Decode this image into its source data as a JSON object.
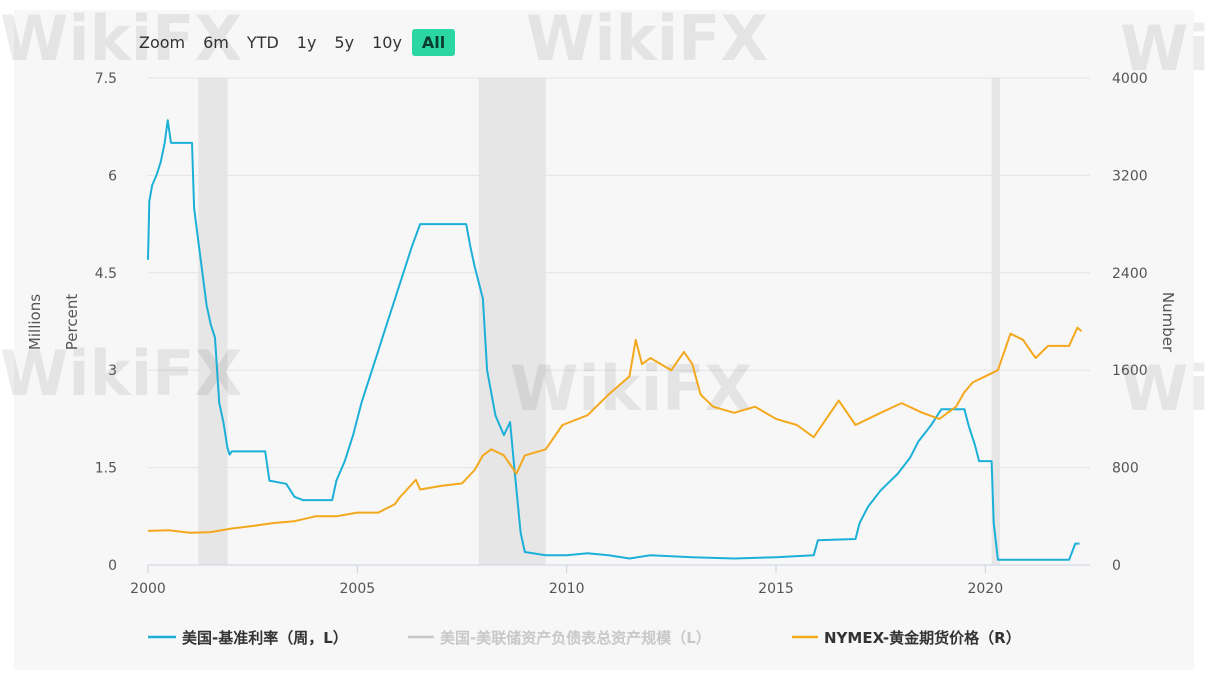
{
  "zoom": {
    "label": "Zoom",
    "buttons": [
      "6m",
      "YTD",
      "1y",
      "5y",
      "10y",
      "All"
    ],
    "active": "All"
  },
  "watermark": "WikiFX",
  "chart_data": {
    "type": "line",
    "x_range": [
      2000,
      2022.5
    ],
    "x_ticks": [
      "2000",
      "2005",
      "2010",
      "2015",
      "2020"
    ],
    "y_left": {
      "labels": [
        "Millions",
        "Percent"
      ],
      "range": [
        0,
        7.5
      ],
      "ticks": [
        "0",
        "1.5",
        "3",
        "4.5",
        "6",
        "7.5"
      ]
    },
    "y_right": {
      "label": "Number",
      "range": [
        0,
        4000
      ],
      "ticks": [
        "0",
        "800",
        "1600",
        "2400",
        "3200",
        "4000"
      ]
    },
    "grid": true,
    "legend_position": "bottom",
    "shaded_periods": [
      [
        2001.2,
        2001.9
      ],
      [
        2007.9,
        2009.5
      ],
      [
        2020.15,
        2020.35
      ]
    ],
    "series": [
      {
        "name": "美国-基准利率（周，L）",
        "axis": "left",
        "color": "#1cb0d8",
        "points": [
          [
            2000.0,
            4.7
          ],
          [
            2000.03,
            5.6
          ],
          [
            2000.1,
            5.85
          ],
          [
            2000.2,
            6.0
          ],
          [
            2000.3,
            6.2
          ],
          [
            2000.4,
            6.5
          ],
          [
            2000.47,
            6.85
          ],
          [
            2000.55,
            6.5
          ],
          [
            2000.9,
            6.5
          ],
          [
            2001.05,
            6.5
          ],
          [
            2001.1,
            5.5
          ],
          [
            2001.2,
            5.0
          ],
          [
            2001.3,
            4.5
          ],
          [
            2001.4,
            4.0
          ],
          [
            2001.5,
            3.7
          ],
          [
            2001.6,
            3.5
          ],
          [
            2001.7,
            2.5
          ],
          [
            2001.8,
            2.2
          ],
          [
            2001.9,
            1.8
          ],
          [
            2001.95,
            1.7
          ],
          [
            2002.0,
            1.75
          ],
          [
            2002.5,
            1.75
          ],
          [
            2002.8,
            1.75
          ],
          [
            2002.9,
            1.3
          ],
          [
            2003.3,
            1.25
          ],
          [
            2003.5,
            1.05
          ],
          [
            2003.7,
            1.0
          ],
          [
            2004.4,
            1.0
          ],
          [
            2004.5,
            1.3
          ],
          [
            2004.7,
            1.6
          ],
          [
            2004.9,
            2.0
          ],
          [
            2005.1,
            2.5
          ],
          [
            2005.3,
            2.9
          ],
          [
            2005.5,
            3.3
          ],
          [
            2005.7,
            3.7
          ],
          [
            2005.9,
            4.1
          ],
          [
            2006.1,
            4.5
          ],
          [
            2006.3,
            4.9
          ],
          [
            2006.5,
            5.25
          ],
          [
            2007.6,
            5.25
          ],
          [
            2007.7,
            4.9
          ],
          [
            2007.8,
            4.6
          ],
          [
            2008.0,
            4.1
          ],
          [
            2008.1,
            3.0
          ],
          [
            2008.3,
            2.3
          ],
          [
            2008.5,
            2.0
          ],
          [
            2008.65,
            2.2
          ],
          [
            2008.75,
            1.5
          ],
          [
            2008.9,
            0.5
          ],
          [
            2009.0,
            0.2
          ],
          [
            2009.5,
            0.15
          ],
          [
            2010.0,
            0.15
          ],
          [
            2010.5,
            0.18
          ],
          [
            2011.0,
            0.15
          ],
          [
            2011.5,
            0.1
          ],
          [
            2012.0,
            0.15
          ],
          [
            2013.0,
            0.12
          ],
          [
            2014.0,
            0.1
          ],
          [
            2015.0,
            0.12
          ],
          [
            2015.9,
            0.15
          ],
          [
            2016.0,
            0.38
          ],
          [
            2016.9,
            0.4
          ],
          [
            2017.0,
            0.65
          ],
          [
            2017.2,
            0.9
          ],
          [
            2017.5,
            1.15
          ],
          [
            2017.9,
            1.4
          ],
          [
            2018.2,
            1.65
          ],
          [
            2018.4,
            1.9
          ],
          [
            2018.7,
            2.15
          ],
          [
            2018.95,
            2.4
          ],
          [
            2019.5,
            2.4
          ],
          [
            2019.6,
            2.15
          ],
          [
            2019.75,
            1.85
          ],
          [
            2019.85,
            1.6
          ],
          [
            2020.15,
            1.6
          ],
          [
            2020.2,
            0.65
          ],
          [
            2020.3,
            0.08
          ],
          [
            2021.0,
            0.08
          ],
          [
            2022.0,
            0.08
          ],
          [
            2022.15,
            0.33
          ],
          [
            2022.25,
            0.33
          ]
        ]
      },
      {
        "name": "美国-美联储资产负债表总资产规模（L）",
        "axis": "left",
        "color": "#c8c8c8",
        "points": []
      },
      {
        "name": "NYMEX-黄金期货价格（R）",
        "axis": "right",
        "color": "#f4a81d",
        "points": [
          [
            2000.0,
            280
          ],
          [
            2000.5,
            285
          ],
          [
            2001.0,
            265
          ],
          [
            2001.5,
            270
          ],
          [
            2002.0,
            300
          ],
          [
            2002.5,
            320
          ],
          [
            2003.0,
            345
          ],
          [
            2003.5,
            360
          ],
          [
            2004.0,
            400
          ],
          [
            2004.5,
            400
          ],
          [
            2005.0,
            430
          ],
          [
            2005.5,
            430
          ],
          [
            2005.9,
            500
          ],
          [
            2006.0,
            550
          ],
          [
            2006.4,
            700
          ],
          [
            2006.5,
            620
          ],
          [
            2007.0,
            650
          ],
          [
            2007.5,
            670
          ],
          [
            2007.8,
            780
          ],
          [
            2008.0,
            900
          ],
          [
            2008.2,
            950
          ],
          [
            2008.5,
            900
          ],
          [
            2008.8,
            750
          ],
          [
            2009.0,
            900
          ],
          [
            2009.5,
            950
          ],
          [
            2009.9,
            1150
          ],
          [
            2010.5,
            1230
          ],
          [
            2011.0,
            1400
          ],
          [
            2011.5,
            1550
          ],
          [
            2011.65,
            1850
          ],
          [
            2011.8,
            1650
          ],
          [
            2012.0,
            1700
          ],
          [
            2012.5,
            1600
          ],
          [
            2012.8,
            1750
          ],
          [
            2013.0,
            1650
          ],
          [
            2013.2,
            1400
          ],
          [
            2013.5,
            1300
          ],
          [
            2014.0,
            1250
          ],
          [
            2014.5,
            1300
          ],
          [
            2015.0,
            1200
          ],
          [
            2015.5,
            1150
          ],
          [
            2015.9,
            1050
          ],
          [
            2016.3,
            1250
          ],
          [
            2016.5,
            1350
          ],
          [
            2016.9,
            1150
          ],
          [
            2017.5,
            1250
          ],
          [
            2018.0,
            1330
          ],
          [
            2018.5,
            1250
          ],
          [
            2018.9,
            1200
          ],
          [
            2019.3,
            1300
          ],
          [
            2019.5,
            1420
          ],
          [
            2019.7,
            1500
          ],
          [
            2020.0,
            1550
          ],
          [
            2020.3,
            1600
          ],
          [
            2020.6,
            1900
          ],
          [
            2020.9,
            1850
          ],
          [
            2021.2,
            1700
          ],
          [
            2021.5,
            1800
          ],
          [
            2022.0,
            1800
          ],
          [
            2022.2,
            1950
          ],
          [
            2022.3,
            1920
          ]
        ]
      }
    ]
  }
}
